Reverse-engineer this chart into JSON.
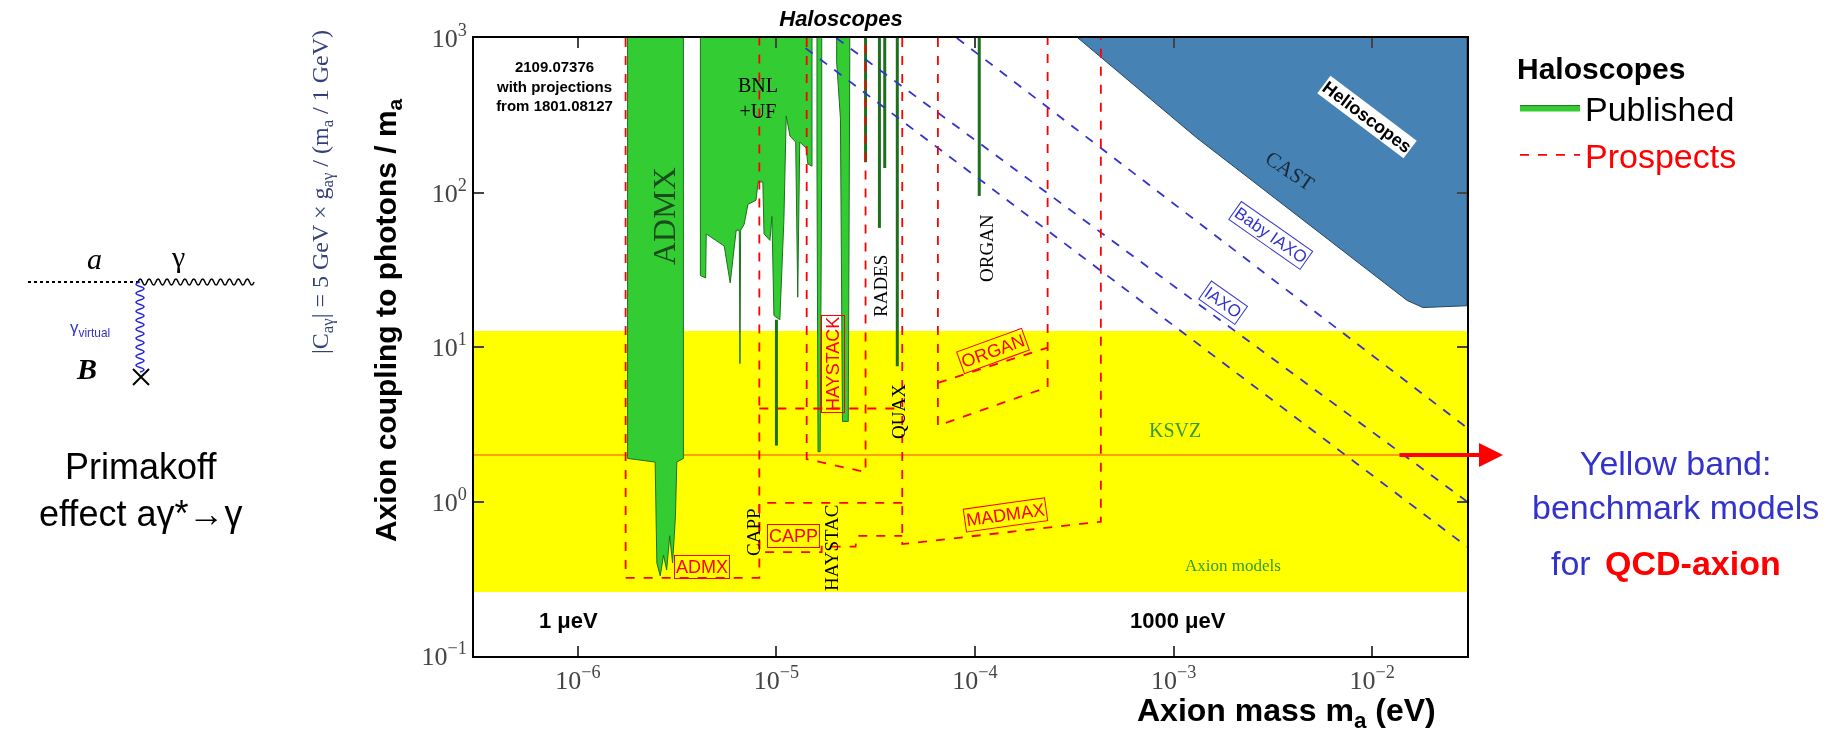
{
  "chart_data": {
    "type": "area",
    "title": "Haloscopes",
    "xlabel": "Axion mass m$_{a}$ (eV)",
    "ylabel": "Axion coupling to photons / m$_{a}$",
    "log": "xy",
    "xlim": [
      3e-07,
      0.03
    ],
    "ylim": [
      0.1,
      1000
    ],
    "xticks": [
      {
        "value": 1e-06,
        "label": "10$^{−6}$"
      },
      {
        "value": 1e-05,
        "label": "10$^{−5}$"
      },
      {
        "value": 0.0001,
        "label": "10$^{−4}$"
      },
      {
        "value": 0.001,
        "label": "10$^{−3}$"
      },
      {
        "value": 0.01,
        "label": "10$^{−2}$"
      }
    ],
    "yticks": [
      {
        "value": 0.1,
        "label": "10$^{−1}$"
      },
      {
        "value": 1,
        "label": "10$^{0}$"
      },
      {
        "value": 10,
        "label": "10$^{1}$"
      },
      {
        "value": 100,
        "label": "10$^{2}$"
      },
      {
        "value": 1000,
        "label": "10$^{3}$"
      }
    ],
    "legend": "right",
    "legend_title": "Haloscopes",
    "marker": "none",
    "bands": [
      {
        "axis": "y",
        "from": 0.26,
        "to": 12.7,
        "color": "#ffff00"
      }
    ],
    "ref_lines": [
      {
        "axis": "y",
        "value": 2,
        "color": "#ff7f00"
      }
    ],
    "series": [
      {
        "name": "Published",
        "color": "#33cc33",
        "x": [
          1.78e-06,
          1.78e-06,
          2.45e-06,
          2.5e-06,
          2.6e-06,
          2.7e-06,
          2.8e-06,
          2.9e-06,
          3e-06,
          3.1e-06,
          3.15e-06,
          3.4e-06,
          3.4e-06,
          null,
          4.14e-06,
          4.14e-06,
          4.4e-06,
          4.43e-06,
          5.46e-06,
          5.85e-06,
          6.27e-06,
          6.5e-06,
          6.55e-06,
          6.6e-06,
          6.87e-06,
          7.19e-06,
          7.89e-06,
          8.08e-06,
          8.54e-06,
          8.66e-06,
          9.27e-06,
          9.49e-06,
          9.71e-06,
          1.04e-05,
          1.09e-05,
          1.12e-05,
          1.17e-05,
          1.25e-05,
          1.28e-05,
          1.31e-05,
          1.41e-05,
          1.44e-05,
          1.51e-05,
          1.51e-05,
          null,
          1.6e-05,
          1.6e-05,
          1.62e-05,
          1.66e-05,
          1.69e-05,
          1.69e-05,
          null,
          2.01e-05,
          2.01e-05,
          2.1e-05,
          2.15e-05,
          2.3e-05,
          2.34e-05,
          2.34e-05
        ],
        "values": [
          1000,
          1.9,
          1.8,
          0.4,
          0.33,
          0.45,
          0.36,
          0.6,
          0.4,
          0.8,
          1.8,
          1.9,
          1000,
          null,
          1000,
          29,
          28,
          54,
          45,
          26,
          57,
          57,
          7.8,
          57,
          62,
          84,
          89,
          117,
          117,
          54,
          49,
          70,
          16,
          15,
          66,
          313,
          232,
          212,
          21,
          212,
          194,
          153,
          148,
          1000,
          null,
          1000,
          150,
          2.1,
          2.1,
          150,
          1000,
          null,
          1000,
          700,
          300,
          3.3,
          3.3,
          700,
          1000
        ]
      },
      {
        "type": "line",
        "color": "#1c701c",
        "line_style": "solid",
        "x": [
          1e-05,
          1e-05,
          null,
          2.81e-05,
          2.81e-05,
          null,
          3.3e-05,
          3.3e-05,
          null,
          3.51e-05,
          3.51e-05,
          null,
          4.06e-05,
          4.06e-05,
          null,
          0.000105,
          0.000105
        ],
        "values": [
          15,
          2.3,
          null,
          1000,
          157,
          null,
          1000,
          59,
          null,
          1000,
          144,
          null,
          1000,
          7.5,
          null,
          1000,
          95
        ]
      },
      {
        "color": "#4682b4",
        "x": [
          0.00033,
          0.0013,
          0.015,
          0.018,
          0.03,
          0.03
        ],
        "values": [
          1000,
          227,
          20,
          18,
          18.5,
          1000
        ]
      },
      {
        "type": "line",
        "color": "#3333cc",
        "line_style": "dashed",
        "x": [
          8.1e-05,
          0.03,
          null,
          2e-05,
          0.03,
          null,
          1.4e-05,
          0.03
        ],
        "values": [
          1000,
          3.0,
          null,
          1000,
          1.0,
          null,
          860,
          0.51
        ]
      },
      {
        "name": "Prospects",
        "type": "line",
        "color": "#ff0000",
        "line_style": "dashed",
        "x": [
          1.74e-06,
          1.74e-06,
          8.2e-06,
          8.2e-06,
          null,
          4.3e-05,
          8.2e-06,
          8.2e-06,
          1.69e-05,
          1.69e-05,
          2.5e-05,
          2.55e-05,
          4.3e-05,
          null,
          8.2e-06,
          4.3e-05,
          null,
          1.42e-05,
          1.42e-05,
          2.81e-05,
          2.81e-05,
          null,
          4.3e-05,
          4.3e-05,
          0.00043,
          0.00043,
          null,
          6.5e-05,
          6.5e-05,
          0.000232,
          0.000232,
          null,
          6.5e-05,
          0.000232
        ],
        "values": [
          1000,
          0.32,
          0.32,
          1000,
          null,
          0.98,
          0.98,
          0.47,
          0.47,
          0.51,
          0.51,
          0.6,
          0.6,
          null,
          4.0,
          4.0,
          null,
          1000,
          1.88,
          1.55,
          1000,
          null,
          1000,
          0.53,
          0.74,
          1000,
          null,
          1000,
          3.1,
          5.5,
          1000,
          null,
          5.85,
          9.9
        ]
      }
    ],
    "annotations": [
      "2109.07376\nwith projections\nfrom 1801.08127",
      "1 μeV",
      "1000 μeV",
      "ADMX",
      "BNL\n+UF",
      "CAPP",
      "HAYSTAC",
      "RADES",
      "QUAX",
      "ORGAN",
      "KSVZ",
      "Axion models",
      "CAST",
      "Helioscopes",
      "Baby IAXO",
      "IAXO",
      "ADMX",
      "CAPP",
      "HAYSTACK",
      "ORGAN",
      "MADMAX",
      "|C$_{aγ}$| = 5 GeV × g$_{aγ}$ / (m$_{a}$ / 1 GeV)",
      "a",
      "γ",
      "γ$_{virtual}$",
      "B⃗",
      "Primakoff\neffect aγ*→γ",
      "Yellow band:\nbenchmark models",
      "for",
      "QCD-axion"
    ]
  }
}
